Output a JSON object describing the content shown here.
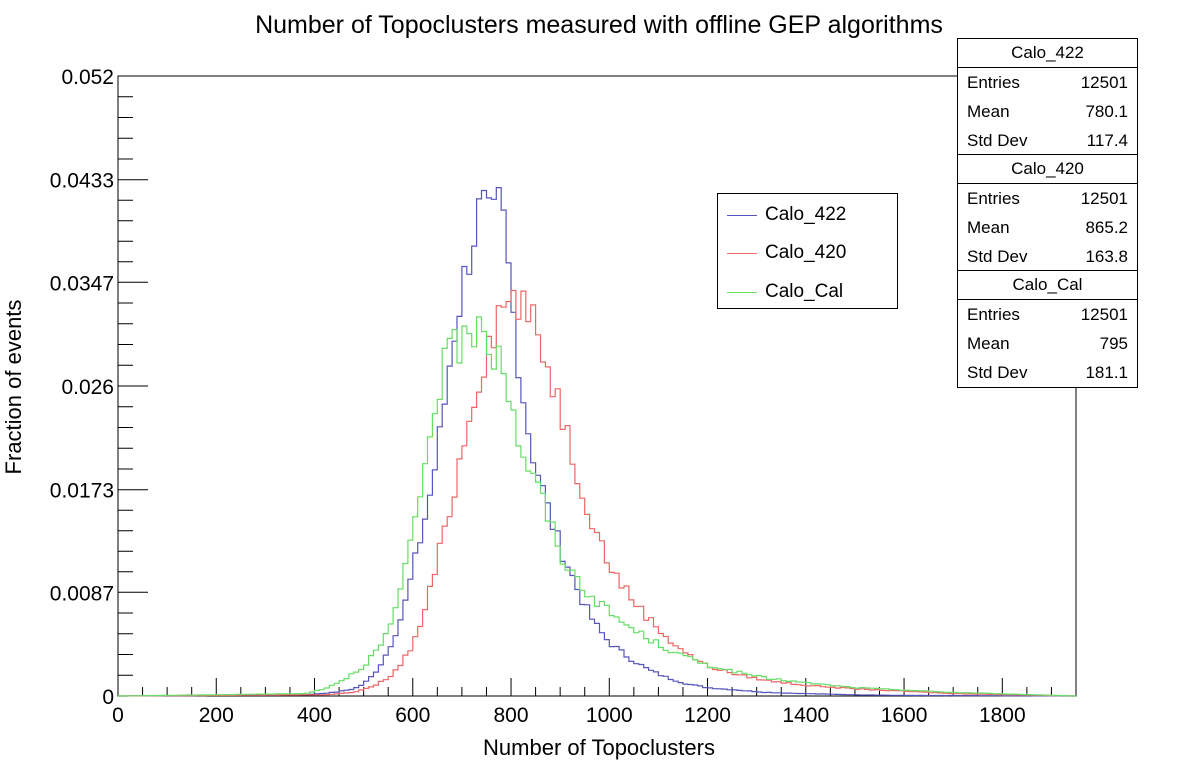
{
  "chart_data": {
    "type": "histogram",
    "title": "Number of Topoclusters measured with offline GEP algorithms",
    "xlabel": "Number of Topoclusters",
    "ylabel": "Fraction of events",
    "xlim": [
      0,
      1950
    ],
    "ylim": [
      0,
      0.052
    ],
    "x_ticks": [
      "0",
      "200",
      "400",
      "600",
      "800",
      "1000",
      "1200",
      "1400",
      "1600",
      "1800"
    ],
    "x_tick_values": [
      0,
      200,
      400,
      600,
      800,
      1000,
      1200,
      1400,
      1600,
      1800
    ],
    "y_ticks": [
      "0",
      "0.0087",
      "0.0173",
      "0.026",
      "0.0347",
      "0.0433",
      "0.052"
    ],
    "y_tick_values": [
      0,
      0.0087,
      0.0173,
      0.026,
      0.0347,
      0.0433,
      0.052
    ],
    "legend_position": "upper-right-inside",
    "series": [
      {
        "name": "Calo_422",
        "color": "#5555bb",
        "stats": {
          "entries": "12501",
          "mean": "780.1",
          "std_dev": "117.4"
        },
        "x": [
          0,
          380,
          440,
          480,
          500,
          520,
          540,
          560,
          580,
          600,
          620,
          640,
          660,
          680,
          700,
          720,
          740,
          760,
          780,
          800,
          820,
          840,
          860,
          880,
          900,
          920,
          940,
          960,
          980,
          1000,
          1040,
          1080,
          1120,
          1160,
          1200,
          1260,
          1320,
          1400,
          1500,
          1600,
          1950
        ],
        "values": [
          0,
          0.0001,
          0.0003,
          0.0006,
          0.001,
          0.0018,
          0.003,
          0.0048,
          0.007,
          0.0105,
          0.014,
          0.0178,
          0.023,
          0.0295,
          0.034,
          0.038,
          0.0412,
          0.039,
          0.0415,
          0.0338,
          0.0265,
          0.021,
          0.018,
          0.015,
          0.0125,
          0.0105,
          0.0085,
          0.0068,
          0.0055,
          0.0045,
          0.0032,
          0.0022,
          0.0015,
          0.001,
          0.0007,
          0.0005,
          0.0003,
          0.0002,
          0.0001,
          5e-05,
          0
        ]
      },
      {
        "name": "Calo_420",
        "color": "#ee6666",
        "stats": {
          "entries": "12501",
          "mean": "865.2",
          "std_dev": "163.8"
        },
        "x": [
          0,
          420,
          480,
          520,
          560,
          600,
          620,
          640,
          660,
          680,
          700,
          720,
          740,
          760,
          780,
          800,
          820,
          840,
          860,
          880,
          900,
          920,
          940,
          960,
          980,
          1000,
          1040,
          1080,
          1120,
          1160,
          1200,
          1260,
          1320,
          1400,
          1500,
          1600,
          1700,
          1950
        ],
        "values": [
          0,
          0.0001,
          0.0003,
          0.0008,
          0.0018,
          0.0042,
          0.0065,
          0.0095,
          0.013,
          0.0165,
          0.0205,
          0.0245,
          0.0275,
          0.0305,
          0.0325,
          0.0335,
          0.033,
          0.0315,
          0.0295,
          0.027,
          0.0245,
          0.021,
          0.018,
          0.0155,
          0.0132,
          0.011,
          0.0085,
          0.0065,
          0.0048,
          0.0035,
          0.0025,
          0.0018,
          0.0013,
          0.0009,
          0.0006,
          0.0004,
          0.0002,
          0
        ]
      },
      {
        "name": "Calo_Cal",
        "color": "#66dd66",
        "stats": {
          "entries": "12501",
          "mean": "795",
          "std_dev": "181.1"
        },
        "x": [
          0,
          380,
          420,
          460,
          500,
          540,
          560,
          580,
          600,
          620,
          640,
          660,
          680,
          700,
          720,
          740,
          760,
          780,
          800,
          820,
          840,
          860,
          880,
          900,
          920,
          940,
          960,
          1000,
          1040,
          1080,
          1120,
          1160,
          1200,
          1260,
          1320,
          1400,
          1500,
          1600,
          1700,
          1950
        ],
        "values": [
          0,
          0.0002,
          0.0006,
          0.0014,
          0.0025,
          0.0045,
          0.0065,
          0.0095,
          0.0135,
          0.018,
          0.0235,
          0.027,
          0.029,
          0.0295,
          0.0305,
          0.0325,
          0.0285,
          0.0295,
          0.024,
          0.021,
          0.0185,
          0.017,
          0.0145,
          0.012,
          0.0105,
          0.0095,
          0.0085,
          0.007,
          0.0058,
          0.0048,
          0.0039,
          0.0032,
          0.0026,
          0.002,
          0.0015,
          0.0011,
          0.0007,
          0.0005,
          0.0003,
          0
        ]
      }
    ]
  },
  "stats_labels": {
    "entries": "Entries",
    "mean": "Mean",
    "std_dev": "Std Dev"
  }
}
